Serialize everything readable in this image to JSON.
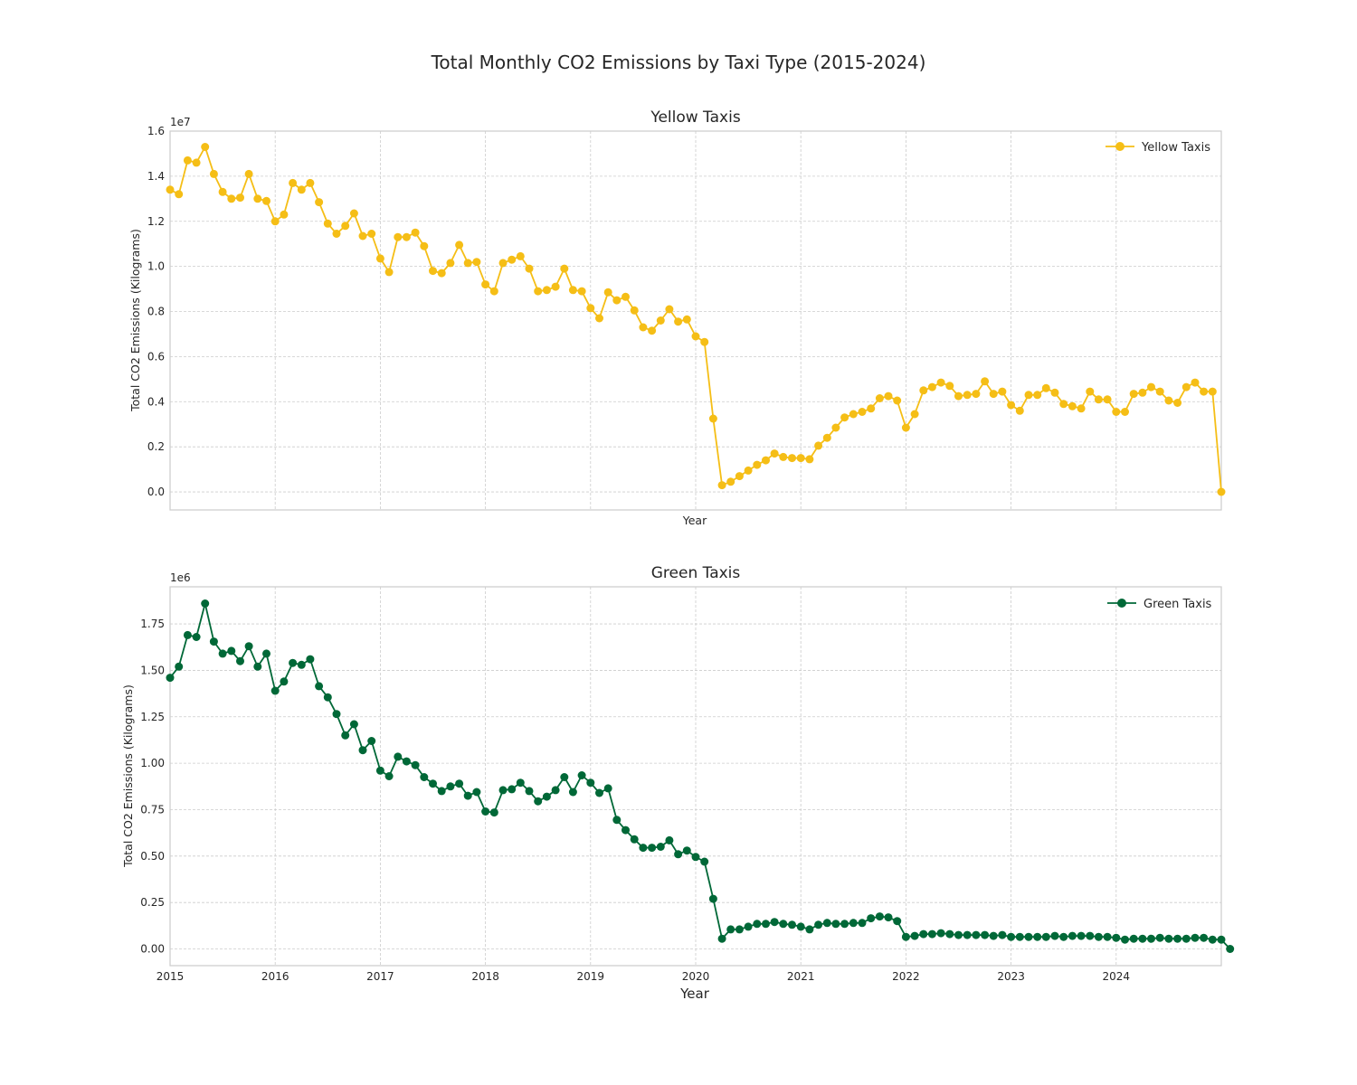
{
  "figure": {
    "title": "Total Monthly CO2 Emissions by Taxi Type (2015-2024)"
  },
  "chart_data": [
    {
      "type": "line",
      "title": "Yellow Taxis",
      "xlabel": "Year",
      "ylabel": "Total CO2 Emissions (Kilograms)",
      "offset_label": "1e7",
      "x_start": "2015-01",
      "x_end": "2025-01",
      "x_ticks": [
        "2015",
        "2016",
        "2017",
        "2018",
        "2019",
        "2020",
        "2021",
        "2022",
        "2023",
        "2024"
      ],
      "x_tick_labels_visible": false,
      "ylim": [
        -0.08,
        1.6
      ],
      "y_ticks": [
        0.0,
        0.2,
        0.4,
        0.6,
        0.8,
        1.0,
        1.2,
        1.4,
        1.6
      ],
      "y_tick_labels": [
        "0.0",
        "0.2",
        "0.4",
        "0.6",
        "0.8",
        "1.0",
        "1.2",
        "1.4",
        "1.6"
      ],
      "grid": true,
      "legend_position": "top-right",
      "series": [
        {
          "name": "Yellow Taxis",
          "color": "#F5BE16",
          "marker": "circle",
          "x_start": "2015-01",
          "frequency": "monthly",
          "values": [
            1.34,
            1.32,
            1.47,
            1.46,
            1.53,
            1.41,
            1.33,
            1.3,
            1.305,
            1.41,
            1.3,
            1.29,
            1.2,
            1.23,
            1.37,
            1.34,
            1.37,
            1.285,
            1.19,
            1.145,
            1.18,
            1.235,
            1.135,
            1.145,
            1.035,
            0.975,
            1.13,
            1.13,
            1.15,
            1.09,
            0.98,
            0.97,
            1.015,
            1.095,
            1.015,
            1.02,
            0.92,
            0.89,
            1.015,
            1.03,
            1.045,
            0.99,
            0.89,
            0.895,
            0.91,
            0.99,
            0.895,
            0.89,
            0.815,
            0.77,
            0.885,
            0.85,
            0.865,
            0.805,
            0.73,
            0.715,
            0.76,
            0.81,
            0.755,
            0.765,
            0.69,
            0.665,
            0.325,
            0.03,
            0.045,
            0.07,
            0.095,
            0.12,
            0.14,
            0.17,
            0.155,
            0.15,
            0.15,
            0.145,
            0.205,
            0.24,
            0.285,
            0.33,
            0.345,
            0.355,
            0.37,
            0.415,
            0.425,
            0.405,
            0.285,
            0.345,
            0.45,
            0.465,
            0.485,
            0.47,
            0.425,
            0.43,
            0.435,
            0.49,
            0.435,
            0.445,
            0.385,
            0.36,
            0.43,
            0.43,
            0.46,
            0.44,
            0.39,
            0.38,
            0.37,
            0.445,
            0.41,
            0.41,
            0.355,
            0.355,
            0.435,
            0.44,
            0.465,
            0.445,
            0.405,
            0.395,
            0.465,
            0.485,
            0.445,
            0.445,
            0.0
          ]
        }
      ]
    },
    {
      "type": "line",
      "title": "Green Taxis",
      "xlabel": "Year",
      "ylabel": "Total CO2 Emissions (Kilograms)",
      "offset_label": "1e6",
      "x_start": "2015-01",
      "x_end": "2025-01",
      "x_ticks": [
        "2015",
        "2016",
        "2017",
        "2018",
        "2019",
        "2020",
        "2021",
        "2022",
        "2023",
        "2024"
      ],
      "x_tick_labels_visible": true,
      "ylim": [
        -0.09,
        1.95
      ],
      "y_ticks": [
        0.0,
        0.25,
        0.5,
        0.75,
        1.0,
        1.25,
        1.5,
        1.75
      ],
      "y_tick_labels": [
        "0.00",
        "0.25",
        "0.50",
        "0.75",
        "1.00",
        "1.25",
        "1.50",
        "1.75"
      ],
      "grid": true,
      "legend_position": "top-right",
      "series": [
        {
          "name": "Green Taxis",
          "color": "#006837",
          "marker": "circle",
          "x_start": "2015-01",
          "frequency": "monthly",
          "values": [
            1.46,
            1.52,
            1.69,
            1.68,
            1.86,
            1.655,
            1.59,
            1.605,
            1.55,
            1.63,
            1.52,
            1.59,
            1.39,
            1.44,
            1.54,
            1.53,
            1.56,
            1.415,
            1.355,
            1.265,
            1.15,
            1.21,
            1.07,
            1.12,
            0.96,
            0.93,
            1.035,
            1.01,
            0.99,
            0.925,
            0.89,
            0.85,
            0.875,
            0.89,
            0.825,
            0.845,
            0.74,
            0.735,
            0.855,
            0.86,
            0.895,
            0.85,
            0.795,
            0.82,
            0.855,
            0.925,
            0.845,
            0.935,
            0.895,
            0.84,
            0.865,
            0.695,
            0.64,
            0.59,
            0.545,
            0.545,
            0.55,
            0.585,
            0.51,
            0.53,
            0.495,
            0.47,
            0.27,
            0.055,
            0.105,
            0.105,
            0.12,
            0.135,
            0.135,
            0.145,
            0.135,
            0.13,
            0.12,
            0.105,
            0.13,
            0.14,
            0.135,
            0.135,
            0.14,
            0.14,
            0.165,
            0.175,
            0.17,
            0.15,
            0.065,
            0.07,
            0.08,
            0.08,
            0.085,
            0.08,
            0.075,
            0.075,
            0.075,
            0.075,
            0.07,
            0.075,
            0.065,
            0.065,
            0.065,
            0.065,
            0.065,
            0.07,
            0.065,
            0.07,
            0.07,
            0.07,
            0.065,
            0.065,
            0.06,
            0.05,
            0.055,
            0.055,
            0.055,
            0.06,
            0.055,
            0.055,
            0.055,
            0.06,
            0.06,
            0.05,
            0.05,
            0.0
          ]
        }
      ]
    }
  ]
}
